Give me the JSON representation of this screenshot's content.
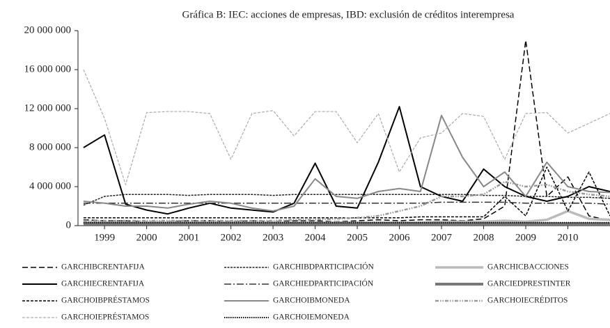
{
  "chart_data": {
    "type": "line",
    "title": "Gráfica B: IEC: acciones de empresas, IBD: exclusión de créditos interempresa",
    "x": [
      1998.5,
      1999,
      1999.5,
      2000,
      2000.5,
      2001,
      2001.5,
      2002,
      2002.5,
      2003,
      2003.5,
      2004,
      2004.5,
      2005,
      2005.5,
      2006,
      2006.5,
      2007,
      2007.5,
      2008,
      2008.5,
      2009,
      2009.5,
      2010,
      2010.5,
      2011
    ],
    "xlim": [
      1998.37,
      2011.0
    ],
    "xticks": [
      1999,
      2000,
      2001,
      2002,
      2003,
      2004,
      2005,
      2006,
      2007,
      2008,
      2009,
      2010
    ],
    "ylim": [
      0,
      20000000
    ],
    "yticks": [
      0,
      {
        "value": 4000000,
        "label": "4 000 000"
      },
      {
        "value": 8000000,
        "label": "8 000 000"
      },
      {
        "value": 12000000,
        "label": "12 000 000"
      },
      {
        "value": 16000000,
        "label": "16 000 000"
      },
      {
        "value": 20000000,
        "label": "20 000 000"
      }
    ],
    "series": [
      {
        "name": "GARCHIBCRENTAFIJA",
        "color": "#000000",
        "dash": "8,4",
        "width": 1.5,
        "values": [
          600000,
          500000,
          500000,
          400000,
          400000,
          500000,
          500000,
          400000,
          500000,
          400000,
          500000,
          500000,
          400000,
          500000,
          600000,
          500000,
          600000,
          600000,
          500000,
          700000,
          2000000,
          19000000,
          3000000,
          5000000,
          1000000,
          500000
        ]
      },
      {
        "name": "GARCHIBDPARTICIPACIÓN",
        "color": "#222222",
        "dash": "3,1.5",
        "width": 1.5,
        "values": [
          2100000,
          3000000,
          3200000,
          3200000,
          3200000,
          3100000,
          3200000,
          3200000,
          3200000,
          3100000,
          3200000,
          3200000,
          3200000,
          3200000,
          3200000,
          3200000,
          3200000,
          3200000,
          3200000,
          3100000,
          3100000,
          3000000,
          3000000,
          2900000,
          2900000,
          2800000
        ]
      },
      {
        "name": "GARCHICBACCIONES",
        "color": "#bbbbbb",
        "dash": "",
        "width": 3.5,
        "values": [
          300000,
          300000,
          300000,
          300000,
          300000,
          300000,
          300000,
          300000,
          300000,
          300000,
          300000,
          300000,
          300000,
          300000,
          300000,
          300000,
          300000,
          400000,
          400000,
          400000,
          500000,
          400000,
          600000,
          1500000,
          700000,
          600000
        ]
      },
      {
        "name": "GARCHIECRENTAFIJA",
        "color": "#000000",
        "dash": "",
        "width": 2,
        "values": [
          8000000,
          9300000,
          2200000,
          1600000,
          1200000,
          1800000,
          2300000,
          1800000,
          1600000,
          1400000,
          2300000,
          6400000,
          2000000,
          1800000,
          6500000,
          12200000,
          4000000,
          3000000,
          2500000,
          5800000,
          4000000,
          3000000,
          2500000,
          3000000,
          4000000,
          3500000
        ]
      },
      {
        "name": "GARCHIEDPARTICIPACIÓN",
        "color": "#333333",
        "dash": "10,3,2,3",
        "width": 1.5,
        "values": [
          2300000,
          2300000,
          2300000,
          2300000,
          2300000,
          2300000,
          2300000,
          2300000,
          2300000,
          2300000,
          2300000,
          2300000,
          2300000,
          2300000,
          2300000,
          2300000,
          2300000,
          2400000,
          2400000,
          2400000,
          2400000,
          2300000,
          2300000,
          2300000,
          2300000,
          2200000
        ]
      },
      {
        "name": "GARCIEDPRESTINTER",
        "color": "#777777",
        "dash": "",
        "width": 4,
        "values": [
          200000,
          200000,
          200000,
          200000,
          200000,
          200000,
          200000,
          200000,
          200000,
          200000,
          200000,
          200000,
          200000,
          200000,
          200000,
          200000,
          200000,
          200000,
          200000,
          200000,
          200000,
          200000,
          200000,
          200000,
          200000,
          200000
        ]
      },
      {
        "name": "GARCHOIBPRÉSTAMOS",
        "color": "#000000",
        "dash": "4,2",
        "width": 1.5,
        "values": [
          800000,
          800000,
          800000,
          800000,
          800000,
          800000,
          800000,
          800000,
          800000,
          800000,
          800000,
          800000,
          800000,
          800000,
          800000,
          800000,
          900000,
          900000,
          900000,
          900000,
          3000000,
          1000000,
          6000000,
          1500000,
          5500000,
          1000000
        ]
      },
      {
        "name": "GARCHOIBMONEDA",
        "color": "#888888",
        "dash": "",
        "width": 2,
        "values": [
          2500000,
          2300000,
          2000000,
          2000000,
          1800000,
          2200000,
          2500000,
          2300000,
          1800000,
          1500000,
          2000000,
          4800000,
          3000000,
          2800000,
          3500000,
          3800000,
          3500000,
          11300000,
          7000000,
          4000000,
          5500000,
          3000000,
          6500000,
          4000000,
          3500000,
          3400000
        ]
      },
      {
        "name": "GARCHOIECRÉDITOS",
        "color": "#999999",
        "dash": "5,2,1.5,2,1.5,2",
        "width": 2.5,
        "values": [
          500000,
          500000,
          500000,
          500000,
          500000,
          500000,
          500000,
          500000,
          500000,
          500000,
          600000,
          600000,
          700000,
          800000,
          1000000,
          1500000,
          2000000,
          3000000,
          3000000,
          3200000,
          4500000,
          4000000,
          4200000,
          3500000,
          3200000,
          3000000
        ]
      },
      {
        "name": "GARCHOIEPRÉSTAMOS",
        "color": "#aaaaaa",
        "dash": "4,2",
        "width": 1.2,
        "values": [
          16000000,
          11000000,
          4200000,
          11600000,
          11700000,
          11700000,
          11500000,
          6800000,
          11500000,
          11800000,
          9200000,
          11700000,
          11700000,
          8500000,
          11500000,
          5500000,
          9000000,
          9500000,
          11500000,
          11200000,
          6800000,
          11500000,
          11600000,
          9500000,
          10500000,
          11500000
        ]
      },
      {
        "name": "GARCHOIEMONEDA",
        "color": "#000000",
        "dash": "1.5,1.5",
        "width": 2,
        "values": [
          300000,
          300000,
          300000,
          300000,
          300000,
          300000,
          300000,
          300000,
          300000,
          300000,
          300000,
          300000,
          300000,
          300000,
          300000,
          300000,
          300000,
          300000,
          300000,
          300000,
          300000,
          300000,
          300000,
          300000,
          300000,
          300000
        ]
      }
    ]
  }
}
